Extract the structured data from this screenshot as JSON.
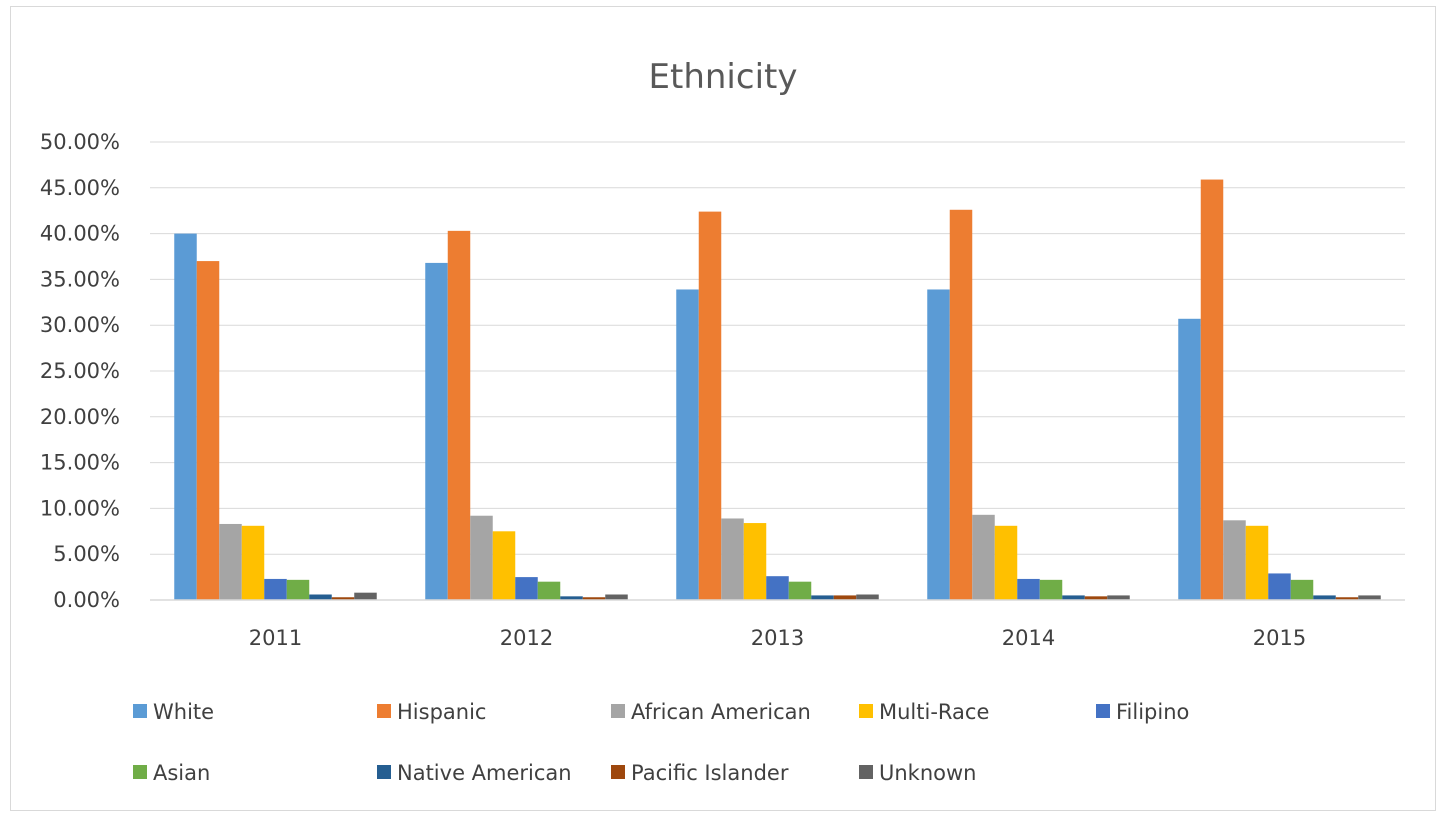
{
  "chart_data": {
    "type": "bar",
    "title": "Ethnicity",
    "xlabel": "",
    "ylabel": "",
    "categories": [
      "2011",
      "2012",
      "2013",
      "2014",
      "2015"
    ],
    "y_ticks": [
      "0.00%",
      "5.00%",
      "10.00%",
      "15.00%",
      "20.00%",
      "25.00%",
      "30.00%",
      "35.00%",
      "40.00%",
      "45.00%",
      "50.00%"
    ],
    "ylim": [
      0,
      50
    ],
    "grid": true,
    "legend_position": "bottom",
    "series": [
      {
        "name": "White",
        "color": "#5b9bd5",
        "values": [
          40.0,
          36.8,
          33.9,
          33.9,
          30.7
        ]
      },
      {
        "name": "Hispanic",
        "color": "#ed7d31",
        "values": [
          37.0,
          40.3,
          42.4,
          42.6,
          45.9
        ]
      },
      {
        "name": "African American",
        "color": "#a5a5a5",
        "values": [
          8.3,
          9.2,
          8.9,
          9.3,
          8.7
        ]
      },
      {
        "name": "Multi-Race",
        "color": "#ffc000",
        "values": [
          8.1,
          7.5,
          8.4,
          8.1,
          8.1
        ]
      },
      {
        "name": "Filipino",
        "color": "#4472c4",
        "values": [
          2.3,
          2.5,
          2.6,
          2.3,
          2.9
        ]
      },
      {
        "name": "Asian",
        "color": "#70ad47",
        "values": [
          2.2,
          2.0,
          2.0,
          2.2,
          2.2
        ]
      },
      {
        "name": "Native American",
        "color": "#255e91",
        "values": [
          0.6,
          0.4,
          0.5,
          0.5,
          0.5
        ]
      },
      {
        "name": "Pacific Islander",
        "color": "#9e480e",
        "values": [
          0.3,
          0.3,
          0.5,
          0.4,
          0.3
        ]
      },
      {
        "name": "Unknown",
        "color": "#636363",
        "values": [
          0.8,
          0.6,
          0.6,
          0.5,
          0.5
        ]
      }
    ]
  }
}
